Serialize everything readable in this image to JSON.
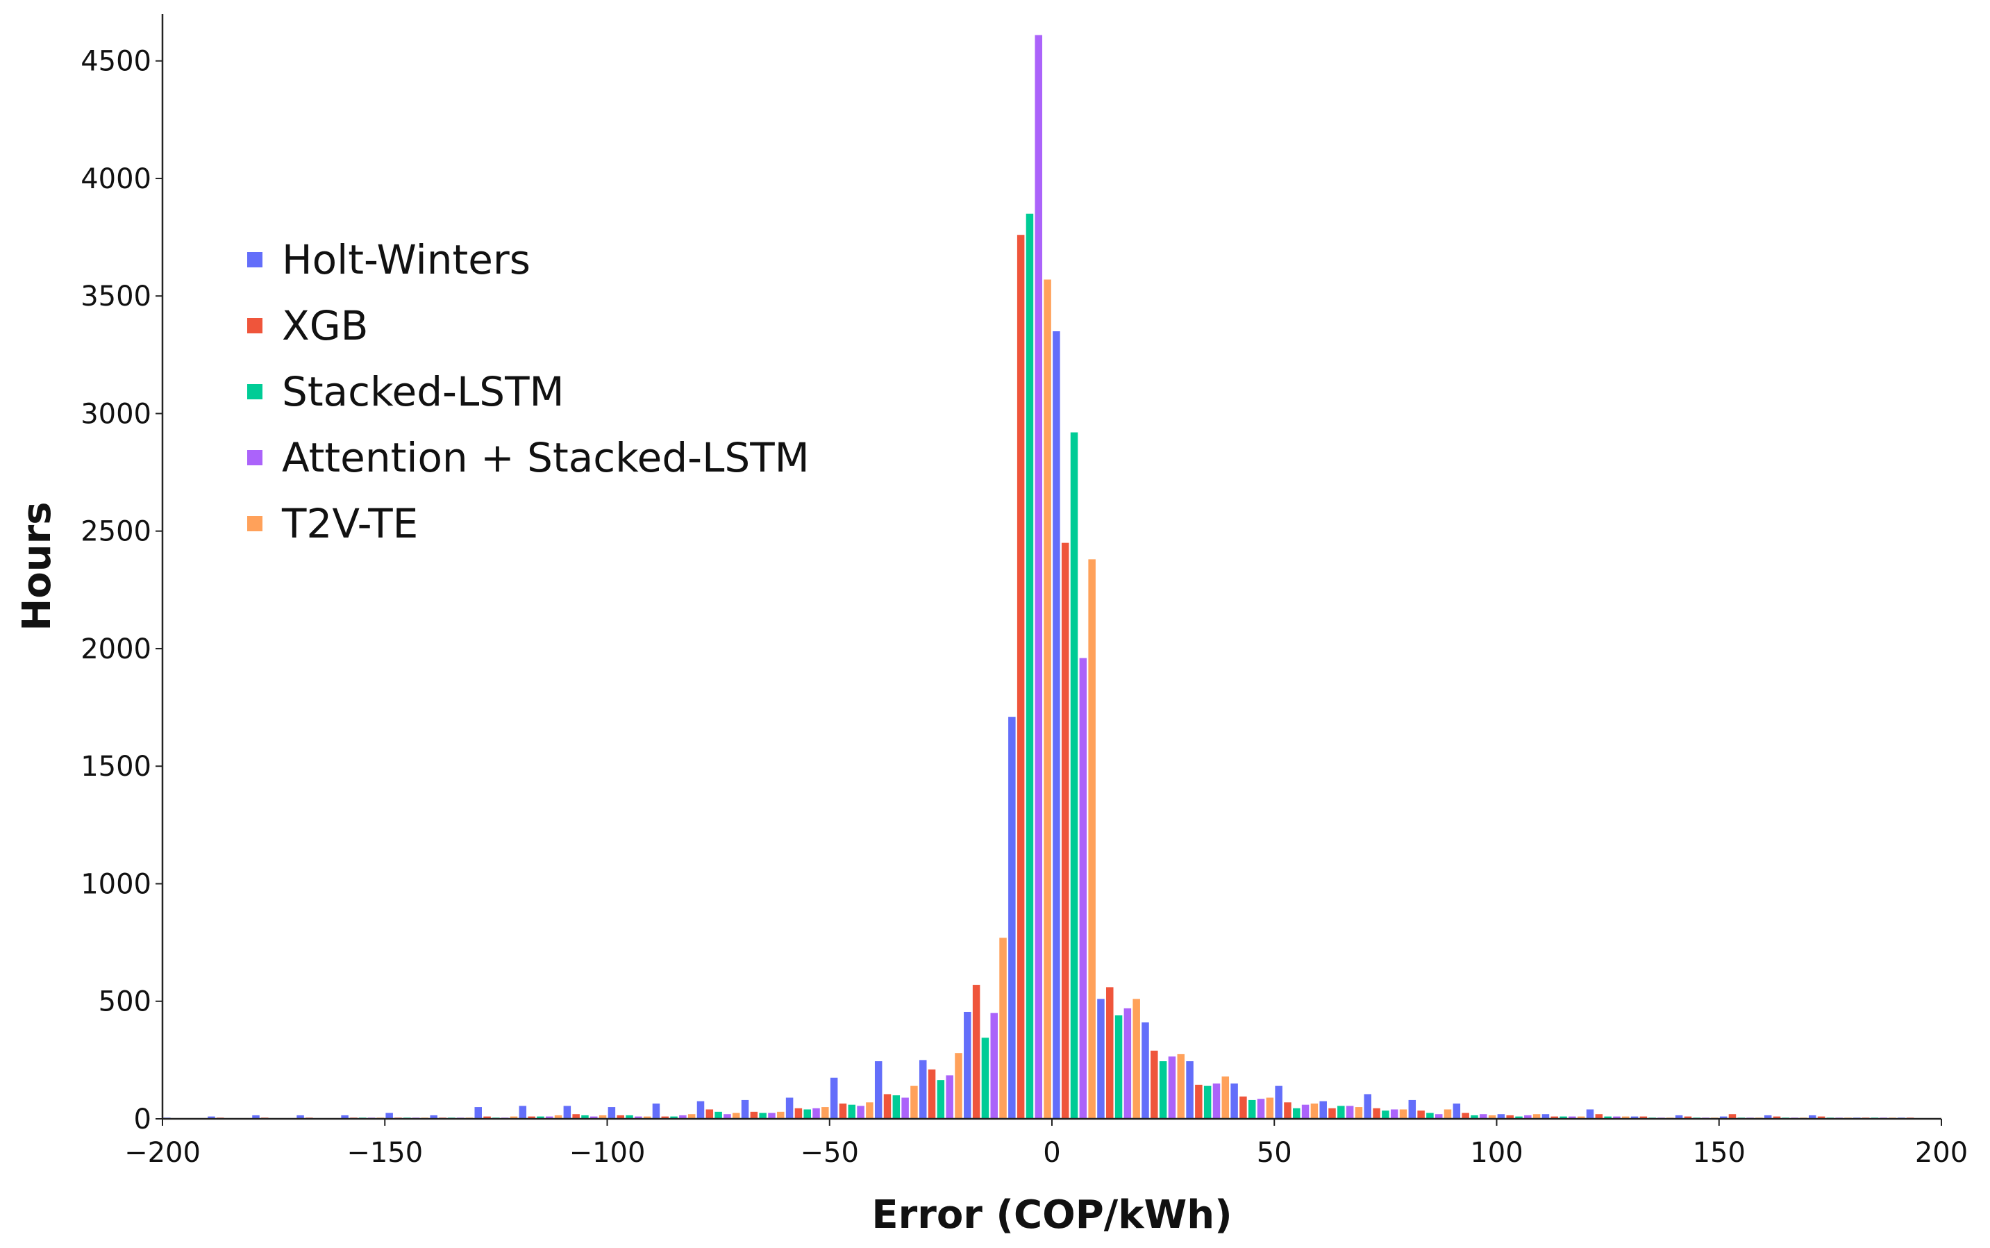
{
  "chart_data": {
    "type": "bar",
    "title": "",
    "xlabel": "Error (COP/kWh)",
    "ylabel": "Hours",
    "xlim": [
      -200,
      200
    ],
    "ylim": [
      0,
      4700
    ],
    "xticks": [
      -200,
      -150,
      -100,
      -50,
      0,
      50,
      100,
      150,
      200
    ],
    "xtick_labels": [
      "−200",
      "−150",
      "−100",
      "−50",
      "0",
      "50",
      "100",
      "150",
      "200"
    ],
    "yticks": [
      0,
      500,
      1000,
      1500,
      2000,
      2500,
      3000,
      3500,
      4000,
      4500
    ],
    "ytick_labels": [
      "0",
      "500",
      "1000",
      "1500",
      "2000",
      "2500",
      "3000",
      "3500",
      "4000",
      "4500"
    ],
    "bin_width": 10,
    "bin_centers": [
      -195,
      -185,
      -175,
      -165,
      -155,
      -145,
      -135,
      -125,
      -115,
      -105,
      -95,
      -85,
      -75,
      -65,
      -55,
      -45,
      -35,
      -25,
      -15,
      -5,
      5,
      15,
      25,
      35,
      45,
      55,
      65,
      75,
      85,
      95,
      105,
      115,
      125,
      135,
      145,
      155,
      165,
      175,
      185,
      195
    ],
    "legend_position": "upper-left",
    "grid": false,
    "series": [
      {
        "name": "Holt-Winters",
        "color": "#636EFA",
        "values": [
          5,
          10,
          15,
          15,
          15,
          25,
          15,
          50,
          55,
          55,
          50,
          65,
          75,
          80,
          90,
          175,
          245,
          250,
          455,
          1710,
          3350,
          510,
          410,
          245,
          150,
          140,
          75,
          105,
          80,
          65,
          20,
          20,
          40,
          10,
          15,
          10,
          15,
          15,
          5,
          5
        ]
      },
      {
        "name": "XGB",
        "color": "#EF553B",
        "values": [
          2,
          5,
          5,
          5,
          5,
          5,
          5,
          10,
          10,
          20,
          15,
          10,
          40,
          30,
          45,
          65,
          105,
          210,
          570,
          3760,
          2450,
          560,
          290,
          145,
          95,
          70,
          45,
          45,
          35,
          25,
          15,
          10,
          20,
          10,
          10,
          20,
          10,
          10,
          5,
          5
        ]
      },
      {
        "name": "Stacked-LSTM",
        "color": "#00CC96",
        "values": [
          2,
          3,
          3,
          3,
          5,
          5,
          5,
          5,
          10,
          15,
          15,
          10,
          30,
          25,
          40,
          60,
          100,
          165,
          345,
          3850,
          2920,
          440,
          245,
          140,
          80,
          45,
          55,
          35,
          25,
          15,
          10,
          10,
          10,
          5,
          5,
          5,
          5,
          5,
          5,
          3
        ]
      },
      {
        "name": "Attention + Stacked-LSTM",
        "color": "#AB63FA",
        "values": [
          2,
          3,
          3,
          3,
          5,
          5,
          5,
          5,
          10,
          10,
          10,
          15,
          20,
          25,
          45,
          55,
          90,
          185,
          450,
          4610,
          1960,
          470,
          265,
          150,
          85,
          60,
          55,
          40,
          20,
          20,
          15,
          10,
          10,
          5,
          5,
          5,
          5,
          5,
          5,
          3
        ]
      },
      {
        "name": "T2V-TE",
        "color": "#FFA15A",
        "values": [
          2,
          3,
          3,
          3,
          5,
          5,
          5,
          10,
          15,
          15,
          10,
          20,
          25,
          30,
          50,
          70,
          140,
          280,
          770,
          3570,
          2380,
          510,
          275,
          180,
          90,
          65,
          50,
          40,
          40,
          15,
          20,
          10,
          10,
          5,
          5,
          5,
          5,
          5,
          5,
          3
        ]
      }
    ]
  }
}
